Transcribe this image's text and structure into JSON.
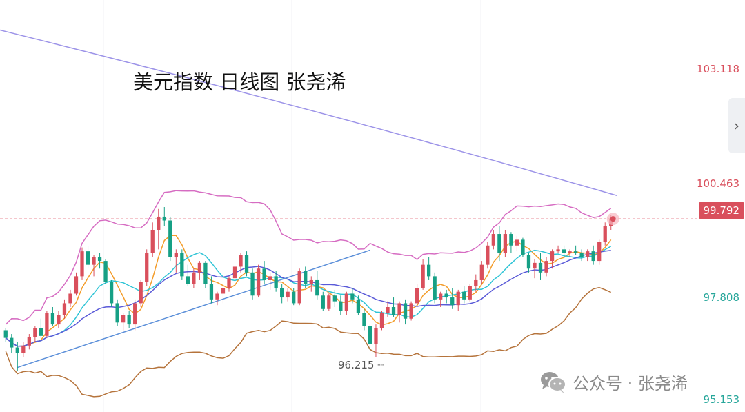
{
  "chart_data": {
    "type": "candlestick",
    "title": "美元指数 日线图 张尧浠",
    "ylim": [
      94.9,
      105.3
    ],
    "y_axis_labels": [
      {
        "text": "103.118",
        "value": 103.118,
        "color": "#d94f5c"
      },
      {
        "text": "100.463",
        "value": 100.463,
        "color": "#d94f5c"
      },
      {
        "text": "97.808",
        "value": 97.808,
        "color": "#26a69a"
      },
      {
        "text": "95.153",
        "value": 95.153,
        "color": "#26a69a"
      }
    ],
    "current_price": {
      "text": "99.792",
      "value": 99.792
    },
    "low_annotation": {
      "text": "96.215",
      "value": 96.215
    },
    "candles": [
      [
        96.9,
        96.95,
        96.6,
        96.7
      ],
      [
        96.7,
        96.8,
        96.3,
        96.45
      ],
      [
        96.45,
        96.6,
        95.85,
        96.3
      ],
      [
        96.3,
        96.6,
        96.2,
        96.5
      ],
      [
        96.5,
        96.8,
        96.4,
        96.72
      ],
      [
        96.72,
        97.0,
        96.6,
        96.95
      ],
      [
        96.95,
        97.2,
        96.7,
        96.75
      ],
      [
        96.75,
        97.4,
        96.7,
        97.35
      ],
      [
        97.35,
        97.5,
        97.0,
        97.05
      ],
      [
        97.05,
        97.4,
        96.95,
        97.3
      ],
      [
        97.3,
        97.7,
        97.2,
        97.6
      ],
      [
        97.6,
        97.95,
        97.5,
        97.85
      ],
      [
        97.85,
        98.4,
        97.8,
        98.3
      ],
      [
        98.3,
        99.05,
        98.2,
        98.95
      ],
      [
        98.95,
        99.1,
        98.5,
        98.6
      ],
      [
        98.6,
        98.85,
        98.3,
        98.8
      ],
      [
        98.8,
        98.9,
        98.5,
        98.7
      ],
      [
        98.7,
        98.75,
        98.1,
        98.15
      ],
      [
        98.15,
        98.2,
        97.5,
        97.6
      ],
      [
        97.6,
        97.7,
        97.0,
        97.1
      ],
      [
        97.1,
        97.35,
        96.9,
        97.3
      ],
      [
        97.3,
        97.4,
        96.95,
        97.05
      ],
      [
        97.05,
        97.7,
        96.9,
        97.6
      ],
      [
        97.6,
        98.2,
        97.5,
        98.15
      ],
      [
        98.15,
        99.0,
        98.05,
        98.9
      ],
      [
        98.9,
        99.7,
        98.8,
        99.5
      ],
      [
        99.5,
        100.05,
        99.0,
        99.85
      ],
      [
        99.85,
        100.1,
        99.6,
        99.75
      ],
      [
        99.75,
        99.85,
        98.7,
        98.8
      ],
      [
        98.8,
        99.0,
        98.4,
        98.9
      ],
      [
        98.9,
        99.0,
        98.2,
        98.3
      ],
      [
        98.3,
        98.6,
        98.05,
        98.1
      ],
      [
        98.1,
        98.5,
        98.0,
        98.4
      ],
      [
        98.4,
        98.7,
        98.2,
        98.65
      ],
      [
        98.65,
        98.7,
        98.0,
        98.1
      ],
      [
        98.1,
        98.3,
        97.6,
        97.7
      ],
      [
        97.7,
        97.9,
        97.55,
        97.85
      ],
      [
        97.85,
        98.1,
        97.6,
        98.0
      ],
      [
        98.0,
        98.3,
        97.9,
        98.25
      ],
      [
        98.25,
        98.6,
        98.15,
        98.55
      ],
      [
        98.55,
        98.9,
        98.4,
        98.85
      ],
      [
        98.85,
        98.95,
        98.3,
        98.4
      ],
      [
        98.4,
        98.5,
        97.7,
        97.8
      ],
      [
        97.8,
        98.6,
        97.75,
        98.5
      ],
      [
        98.5,
        98.7,
        98.1,
        98.2
      ],
      [
        98.2,
        98.4,
        97.95,
        98.3
      ],
      [
        98.3,
        98.45,
        97.9,
        98.0
      ],
      [
        98.0,
        98.1,
        97.6,
        97.75
      ],
      [
        97.75,
        98.0,
        97.65,
        97.9
      ],
      [
        97.9,
        98.0,
        97.55,
        97.6
      ],
      [
        97.6,
        98.5,
        97.55,
        98.45
      ],
      [
        98.45,
        98.55,
        98.0,
        98.1
      ],
      [
        98.1,
        98.3,
        97.9,
        98.2
      ],
      [
        98.2,
        98.45,
        97.7,
        97.8
      ],
      [
        97.8,
        97.9,
        97.4,
        97.45
      ],
      [
        97.45,
        97.85,
        97.4,
        97.8
      ],
      [
        97.8,
        97.95,
        97.5,
        97.65
      ],
      [
        97.65,
        97.8,
        97.3,
        97.4
      ],
      [
        97.4,
        97.9,
        97.3,
        97.85
      ],
      [
        97.85,
        98.0,
        97.6,
        97.7
      ],
      [
        97.7,
        97.8,
        97.3,
        97.35
      ],
      [
        97.35,
        97.45,
        96.9,
        97.0
      ],
      [
        97.0,
        97.05,
        96.4,
        96.55
      ],
      [
        96.55,
        97.05,
        96.2,
        96.95
      ],
      [
        96.95,
        97.4,
        96.9,
        97.35
      ],
      [
        97.35,
        97.65,
        97.25,
        97.5
      ],
      [
        97.5,
        97.75,
        97.25,
        97.3
      ],
      [
        97.3,
        97.65,
        97.1,
        97.6
      ],
      [
        97.6,
        97.7,
        97.05,
        97.2
      ],
      [
        97.2,
        97.65,
        97.15,
        97.6
      ],
      [
        97.6,
        98.1,
        97.55,
        98.0
      ],
      [
        98.0,
        98.75,
        97.95,
        98.6
      ],
      [
        98.6,
        98.8,
        98.2,
        98.3
      ],
      [
        98.3,
        98.4,
        97.6,
        97.7
      ],
      [
        97.7,
        97.9,
        97.5,
        97.85
      ],
      [
        97.85,
        97.95,
        97.6,
        97.75
      ],
      [
        97.75,
        98.0,
        97.45,
        97.55
      ],
      [
        97.55,
        97.95,
        97.4,
        97.9
      ],
      [
        97.9,
        98.05,
        97.6,
        97.7
      ],
      [
        97.7,
        98.1,
        97.65,
        98.05
      ],
      [
        98.05,
        98.35,
        97.9,
        98.2
      ],
      [
        98.2,
        98.7,
        98.1,
        98.6
      ],
      [
        98.6,
        99.2,
        98.5,
        99.1
      ],
      [
        99.1,
        99.5,
        99.0,
        99.4
      ],
      [
        99.4,
        99.6,
        98.7,
        98.9
      ],
      [
        98.9,
        99.5,
        98.8,
        99.4
      ],
      [
        99.4,
        99.45,
        98.9,
        99.1
      ],
      [
        99.1,
        99.35,
        98.95,
        99.25
      ],
      [
        99.25,
        99.3,
        98.8,
        98.85
      ],
      [
        98.85,
        98.9,
        98.4,
        98.5
      ],
      [
        98.5,
        98.75,
        98.25,
        98.65
      ],
      [
        98.65,
        98.9,
        98.2,
        98.4
      ],
      [
        98.4,
        98.8,
        98.3,
        98.7
      ],
      [
        98.7,
        99.0,
        98.5,
        98.95
      ],
      [
        98.95,
        99.1,
        98.9,
        99.0
      ],
      [
        99.0,
        99.1,
        98.8,
        98.9
      ],
      [
        98.9,
        99.0,
        98.8,
        98.95
      ],
      [
        98.95,
        99.1,
        98.85,
        98.9
      ],
      [
        98.9,
        99.0,
        98.7,
        98.8
      ],
      [
        98.8,
        99.0,
        98.7,
        98.95
      ],
      [
        98.95,
        99.1,
        98.6,
        98.7
      ],
      [
        98.7,
        99.25,
        98.6,
        99.2
      ],
      [
        99.2,
        99.7,
        99.1,
        99.6
      ],
      [
        99.6,
        99.9,
        99.5,
        99.8
      ]
    ],
    "series": [
      {
        "type": "ma",
        "period": 5,
        "color": "#f39c2a"
      },
      {
        "type": "ma",
        "period": 10,
        "color": "#2ec4d6"
      },
      {
        "type": "ma",
        "period": 20,
        "color": "#5a5ad8"
      },
      {
        "type": "bollinger_upper",
        "color": "#d66cc2"
      },
      {
        "type": "bollinger_lower",
        "color": "#b5733b"
      },
      {
        "type": "long_ma",
        "color": "#9c93e8",
        "values": [
          104.7,
          102.6,
          100.4
        ]
      },
      {
        "type": "trendline",
        "color": "#5b8fd9",
        "from": [
          2,
          95.93
        ],
        "to": [
          62,
          98.98
        ]
      }
    ],
    "colors": {
      "up": "#d94f5c",
      "down": "#16a085",
      "current_line": "#e26a78"
    }
  },
  "watermark": {
    "text": "公众号 · 张尧浠",
    "icon": "wechat-icon"
  },
  "side_tab": {
    "label": "›"
  }
}
